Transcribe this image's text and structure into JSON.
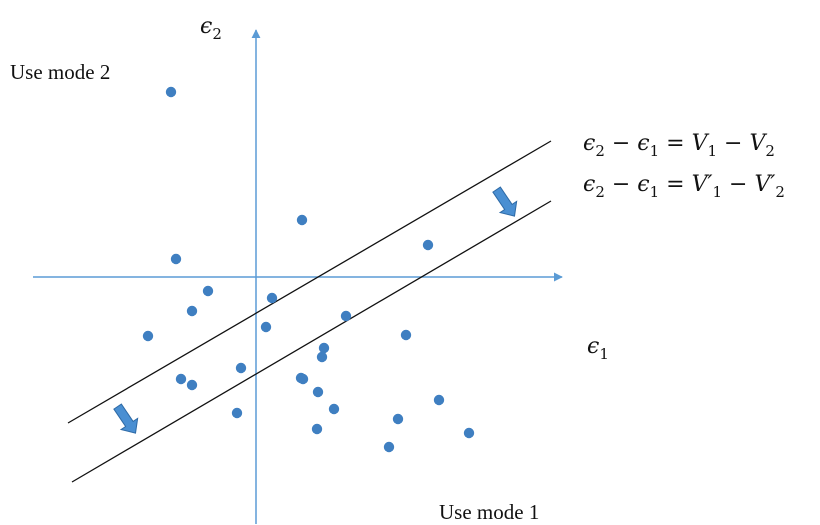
{
  "labels": {
    "use_mode_2": "Use mode 2",
    "use_mode_1": "Use mode 1",
    "y_axis_symbol": "ϵ",
    "y_axis_sub": "2",
    "x_axis_symbol": "ϵ",
    "x_axis_sub": "1"
  },
  "equations": {
    "eq1": {
      "e": "ϵ",
      "s2": "2",
      "minus1": " − ",
      "e_b": "ϵ",
      "s1": "1",
      "eq": " = ",
      "V1": "V",
      "v1sub": "1",
      "minus2": " − ",
      "V2": "V",
      "v2sub": "2"
    },
    "eq2": {
      "e": "ϵ",
      "s2": "2",
      "minus1": " − ",
      "e_b": "ϵ",
      "s1": "1",
      "eq": " = ",
      "V1": "V′",
      "v1sub": "1",
      "minus2": " − ",
      "V2": "V′",
      "v2sub": "2"
    }
  },
  "colors": {
    "axis": "#5b9bd5",
    "points": "#3f7fc1",
    "lines": "#111111",
    "shift_arrow_fill": "#4a8fd2",
    "shift_arrow_stroke": "#2e6aa6"
  },
  "points": [
    {
      "e1": -0.85,
      "e2": 1.85
    },
    {
      "e1": -0.8,
      "e2": 0.18
    },
    {
      "e1": 0.46,
      "e2": 0.57
    },
    {
      "e1": 1.72,
      "e2": 0.32
    },
    {
      "e1": -0.48,
      "e2": -0.14
    },
    {
      "e1": -0.64,
      "e2": -0.34
    },
    {
      "e1": 0.16,
      "e2": -0.21
    },
    {
      "e1": 0.1,
      "e2": -0.5
    },
    {
      "e1": 0.9,
      "e2": -0.39
    },
    {
      "e1": -1.08,
      "e2": -0.59
    },
    {
      "e1": 1.5,
      "e2": -0.58
    },
    {
      "e1": 0.68,
      "e2": -0.71
    },
    {
      "e1": 0.66,
      "e2": -0.8
    },
    {
      "e1": -0.15,
      "e2": -0.91
    },
    {
      "e1": -0.75,
      "e2": -1.02
    },
    {
      "e1": -0.64,
      "e2": -1.08
    },
    {
      "e1": 0.45,
      "e2": -1.01
    },
    {
      "e1": 0.47,
      "e2": -1.02
    },
    {
      "e1": 0.62,
      "e2": -1.15
    },
    {
      "e1": 0.78,
      "e2": -1.32
    },
    {
      "e1": -0.19,
      "e2": -1.36
    },
    {
      "e1": 1.42,
      "e2": -1.42
    },
    {
      "e1": 1.83,
      "e2": -1.23
    },
    {
      "e1": 0.61,
      "e2": -1.52
    },
    {
      "e1": 2.13,
      "e2": -1.56
    },
    {
      "e1": 1.33,
      "e2": -1.7
    }
  ],
  "lines": {
    "upper": {
      "name": "ϵ2 − ϵ1 = V1 − V2",
      "intercept": -0.72,
      "slope": 0.56
    },
    "lower": {
      "name": "ϵ2 − ϵ1 = V′1 − V′2",
      "intercept": -1.12,
      "slope": 0.56
    }
  }
}
